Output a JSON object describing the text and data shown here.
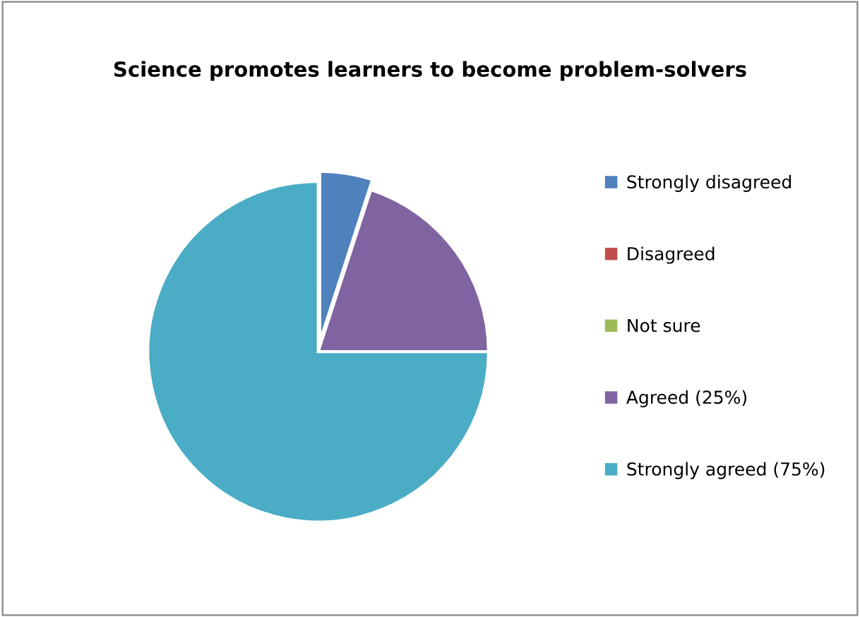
{
  "chart_data": {
    "type": "pie",
    "title": "Science promotes learners to become problem-solvers",
    "categories": [
      "Strongly disagreed",
      "Disagreed",
      "Not sure",
      "Agreed (25%)",
      "Strongly agreed (75%)"
    ],
    "values": [
      5,
      0,
      0,
      20,
      75
    ],
    "colors": [
      "#4f81bd",
      "#c0504d",
      "#9bbb59",
      "#8064a2",
      "#4bacc6"
    ],
    "legend": "right"
  }
}
